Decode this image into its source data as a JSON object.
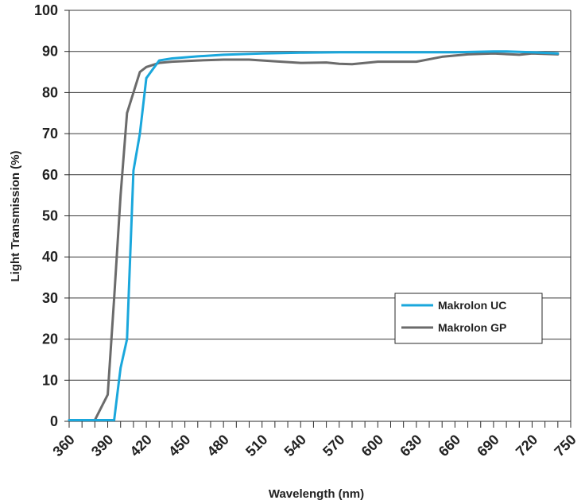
{
  "chart_data": {
    "type": "line",
    "xlabel": "Wavelength (nm)",
    "ylabel": "Light Transmission (%)",
    "xlim": [
      360,
      750
    ],
    "ylim": [
      0,
      100
    ],
    "x_ticks": [
      360,
      390,
      420,
      450,
      480,
      510,
      540,
      570,
      600,
      630,
      660,
      690,
      720,
      750
    ],
    "y_ticks": [
      0,
      10,
      20,
      30,
      40,
      50,
      60,
      70,
      80,
      90,
      100
    ],
    "grid": "horizontal",
    "legend_position": "bottom-right",
    "series": [
      {
        "name": "Makrolon UC",
        "color": "#1aa7dc",
        "x": [
          360,
          380,
          395,
          398,
          400,
          405,
          410,
          415,
          420,
          430,
          440,
          460,
          480,
          510,
          540,
          570,
          600,
          630,
          660,
          690,
          700,
          720,
          740
        ],
        "y": [
          0.3,
          0.3,
          0.3,
          8,
          13,
          20,
          61,
          70,
          83.5,
          87.8,
          88.3,
          88.8,
          89.2,
          89.5,
          89.7,
          89.8,
          89.8,
          89.8,
          89.8,
          90,
          90,
          89.8,
          89.5
        ]
      },
      {
        "name": "Makrolon GP",
        "color": "#6b6b6b",
        "x": [
          360,
          380,
          390,
          395,
          400,
          405,
          410,
          415,
          420,
          430,
          440,
          460,
          480,
          500,
          520,
          540,
          560,
          570,
          580,
          600,
          630,
          650,
          670,
          690,
          710,
          720,
          740
        ],
        "y": [
          0.3,
          0.3,
          6.5,
          30,
          55,
          75,
          80,
          85,
          86.2,
          87.2,
          87.5,
          87.8,
          88,
          88,
          87.6,
          87.2,
          87.3,
          87,
          86.9,
          87.5,
          87.5,
          88.7,
          89.3,
          89.5,
          89.2,
          89.5,
          89.3
        ]
      }
    ]
  }
}
